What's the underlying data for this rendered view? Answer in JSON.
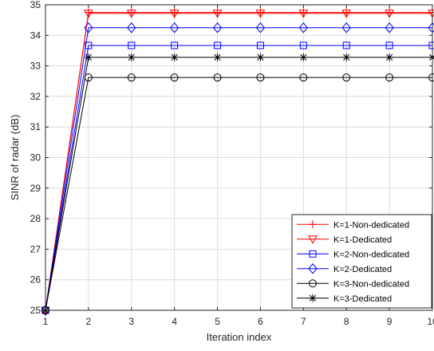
{
  "chart_data": {
    "type": "line",
    "xlabel": "Iteration index",
    "ylabel": "SINR of radar (dB)",
    "xlim": [
      1,
      10
    ],
    "ylim": [
      25,
      35
    ],
    "xticks": [
      1,
      2,
      3,
      4,
      5,
      6,
      7,
      8,
      9,
      10
    ],
    "yticks": [
      25,
      26,
      27,
      28,
      29,
      30,
      31,
      32,
      33,
      34,
      35
    ],
    "grid": true,
    "legend_position": "bottom-right",
    "x": [
      1,
      2,
      3,
      4,
      5,
      6,
      7,
      8,
      9,
      10
    ],
    "series": [
      {
        "name": "K=1-Non-dedicated",
        "color": "#ff0000",
        "marker": "plus",
        "values": [
          25.0,
          34.75,
          34.75,
          34.75,
          34.75,
          34.75,
          34.75,
          34.75,
          34.75,
          34.75
        ]
      },
      {
        "name": "K=1-Dedicated",
        "color": "#ff0000",
        "marker": "triangle-down",
        "values": [
          25.0,
          34.72,
          34.72,
          34.72,
          34.72,
          34.72,
          34.72,
          34.72,
          34.72,
          34.72
        ]
      },
      {
        "name": "K=2-Non-dedicated",
        "color": "#0000ff",
        "marker": "square",
        "values": [
          25.0,
          33.67,
          33.67,
          33.67,
          33.67,
          33.67,
          33.67,
          33.67,
          33.67,
          33.67
        ]
      },
      {
        "name": "K=2-Dedicated",
        "color": "#0000ff",
        "marker": "diamond",
        "values": [
          25.0,
          34.25,
          34.25,
          34.25,
          34.25,
          34.25,
          34.25,
          34.25,
          34.25,
          34.25
        ]
      },
      {
        "name": "K=3-Non-dedicated",
        "color": "#000000",
        "marker": "circle",
        "values": [
          25.0,
          32.62,
          32.62,
          32.62,
          32.62,
          32.62,
          32.62,
          32.62,
          32.62,
          32.62
        ]
      },
      {
        "name": "K=3-Dedicated",
        "color": "#000000",
        "marker": "asterisk",
        "values": [
          25.0,
          33.28,
          33.28,
          33.28,
          33.28,
          33.28,
          33.28,
          33.28,
          33.28,
          33.28
        ]
      }
    ]
  }
}
